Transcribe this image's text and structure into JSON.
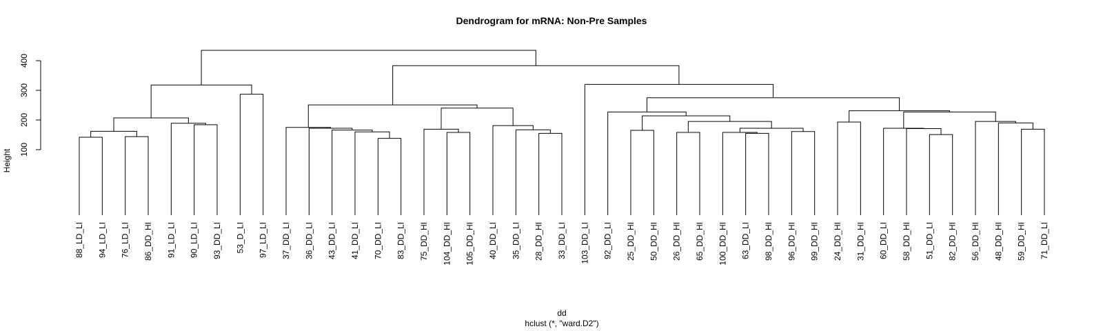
{
  "chart_data": {
    "type": "dendrogram",
    "title": "Dendrogram for mRNA: Non-Pre Samples",
    "xlabel": "dd",
    "sublabel": "hclust (*, \"ward.D2\")",
    "ylabel": "Height",
    "yticks": [
      100,
      200,
      300,
      400
    ],
    "ylim": [
      100,
      450
    ],
    "leaves": [
      "88_LD_LI",
      "94_LD_LI",
      "76_LD_LI",
      "86_DD_HI",
      "91_LD_LI",
      "90_LD_LI",
      "93_DD_LI",
      "53_D_LI",
      "97_LD_LI",
      "37_DD_LI",
      "36_DD_LI",
      "43_DD_LI",
      "41_DD_LI",
      "70_DD_LI",
      "83_DD_LI",
      "75_DD_HI",
      "104_DD_HI",
      "105_DD_HI",
      "40_DD_LI",
      "35_DD_LI",
      "28_DD_HI",
      "33_DD_LI",
      "103_DD_LI",
      "92_DD_LI",
      "25_DD_HI",
      "50_DD_HI",
      "26_DD_HI",
      "65_DD_HI",
      "100_DD_HI",
      "63_DD_LI",
      "98_DD_HI",
      "96_DD_HI",
      "99_DD_HI",
      "24_DD_HI",
      "31_DD_HI",
      "60_DD_LI",
      "58_DD_HI",
      "51_DD_LI",
      "82_DD_HI",
      "56_DD_HI",
      "48_DD_HI",
      "59_DD_HI",
      "71_DD_LI"
    ],
    "merges": [
      [
        0,
        1,
        142
      ],
      [
        2,
        3,
        144
      ],
      [
        -1,
        -2,
        162
      ],
      [
        5,
        6,
        184
      ],
      [
        4,
        -4,
        189
      ],
      [
        -3,
        -5,
        207
      ],
      [
        7,
        8,
        287
      ],
      [
        -6,
        -7,
        318
      ],
      [
        13,
        14,
        138
      ],
      [
        12,
        -9,
        160
      ],
      [
        11,
        -10,
        166
      ],
      [
        10,
        -11,
        172
      ],
      [
        9,
        -12,
        175
      ],
      [
        16,
        17,
        158
      ],
      [
        15,
        -14,
        169
      ],
      [
        20,
        21,
        155
      ],
      [
        19,
        -16,
        167
      ],
      [
        18,
        -17,
        181
      ],
      [
        -15,
        -18,
        240
      ],
      [
        -13,
        -19,
        251
      ],
      [
        29,
        30,
        155
      ],
      [
        28,
        -21,
        158
      ],
      [
        31,
        32,
        161
      ],
      [
        -22,
        -23,
        172
      ],
      [
        26,
        27,
        158
      ],
      [
        -25,
        -24,
        195
      ],
      [
        24,
        25,
        165
      ],
      [
        -27,
        -26,
        214
      ],
      [
        23,
        -28,
        227
      ],
      [
        37,
        38,
        151
      ],
      [
        36,
        -30,
        171
      ],
      [
        35,
        -31,
        172
      ],
      [
        41,
        42,
        169
      ],
      [
        40,
        -33,
        190
      ],
      [
        39,
        -34,
        195
      ],
      [
        -32,
        -35,
        227
      ],
      [
        33,
        34,
        193
      ],
      [
        -37,
        -36,
        231
      ],
      [
        -29,
        -38,
        275
      ],
      [
        22,
        -39,
        320
      ],
      [
        -20,
        -40,
        383
      ],
      [
        -8,
        -41,
        435
      ]
    ]
  }
}
